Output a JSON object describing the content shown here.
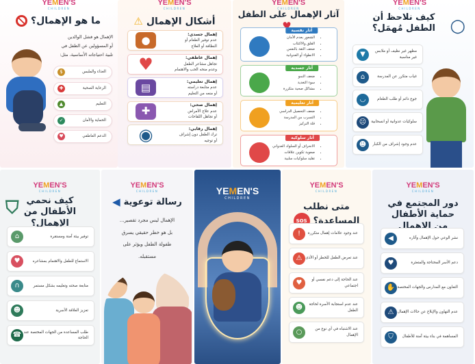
{
  "logo": {
    "pre": "YE",
    "mid": "M",
    "post": "EN'S",
    "sub": "CHILDREN"
  },
  "panels": [
    {
      "key": "what",
      "title": "ما هو الإهمال؟",
      "title_icon": "prohibited-icon",
      "intro": [
        "الإهمال هو فشل الوالدين",
        "أو المسؤولين عن الطفل في",
        "تلبية احتياجاته الأساسية، مثل:"
      ],
      "items": [
        {
          "text": "الغذاء والملبس",
          "icon": "money-bag-icon",
          "color": "#c8902a",
          "glyph": "$"
        },
        {
          "text": "الرعاية الصحية",
          "icon": "medical-cross-icon",
          "color": "#d83a3a",
          "glyph": "✚"
        },
        {
          "text": "التعليم",
          "icon": "graduation-cap-icon",
          "color": "#4f8a2e",
          "glyph": "▲"
        },
        {
          "text": "الحماية والأمان",
          "icon": "shield-icon",
          "color": "#2e8a5e",
          "glyph": "✓"
        },
        {
          "text": "الدعم العاطفي",
          "icon": "heart-hands-icon",
          "color": "#d84a5a",
          "glyph": "♥"
        }
      ]
    },
    {
      "key": "forms",
      "title": "أشكال الإهمال",
      "title_icon": "warning-icon",
      "items": [
        {
          "head": "إهمال جسدي:",
          "lines": [
            "عدم توفير الطعام أو",
            "النظافة أو العلاج"
          ],
          "icon": "food-plate-icon",
          "color": "#c86a2a",
          "glyph": "●",
          "border": "#f3d3b8"
        },
        {
          "head": "إهمال عاطفي:",
          "lines": [
            "تجاهل مشاعر الطفل",
            "وعدم منحه الحب والاهتمام"
          ],
          "icon": "heart-icon",
          "color": "#e04848",
          "glyph": "♥",
          "border": "#f4c8c8"
        },
        {
          "head": "إهمال تعليمي:",
          "lines": [
            "عدم متابعة دراسته",
            "أو منعه من التعليم"
          ],
          "icon": "book-icon",
          "color": "#6a48a0",
          "glyph": "▤",
          "border": "#d8d0ee"
        },
        {
          "head": "إهمال صحي:",
          "lines": [
            "عدم علاج الأمراض",
            "أو تجاهل اللقاحات"
          ],
          "icon": "first-aid-kit-icon",
          "color": "#8a58b0",
          "glyph": "✚",
          "border": "#f3d8c0"
        },
        {
          "head": "إهمال رقابي:",
          "lines": [
            "ترك الطفل دون إشراف",
            "أو توجيه"
          ],
          "icon": "eye-icon",
          "color": "#1e5a8a",
          "glyph": "◉",
          "border": "#e8dcc8"
        }
      ]
    },
    {
      "key": "effects",
      "title": "آثار الإهمال على الطفل",
      "title_icon": "broken-heart-icon",
      "sections": [
        {
          "tag": "آثار نفسية",
          "color": "#2f7ac0",
          "icon": "brain-head-icon",
          "points": [
            "الشعور بعدم الأمان",
            "القلق والاكتئاب",
            "ضعف الثقة بالنفس",
            "الانطواء أو العدوانية"
          ]
        },
        {
          "tag": "آثار جسدية",
          "color": "#4aa84a",
          "icon": "person-icon",
          "points": [
            "ضعف النمو",
            "سوء التغذية",
            "مشاكل صحية متكررة"
          ]
        },
        {
          "tag": "آثار تعليمية",
          "color": "#f0a020",
          "icon": "reading-icon",
          "points": [
            "ضعف التحصيل الدراسي",
            "التسرب من المدرسة",
            "قلة التركيز"
          ]
        },
        {
          "tag": "آثار سلوكية",
          "color": "#e04848",
          "icon": "two-people-icon",
          "points": [
            "الانحراف أو السلوك العدواني",
            "صعوبة تكوين علاقات",
            "تقليد سلوكيات سلبية"
          ]
        }
      ]
    },
    {
      "key": "signs",
      "title": "كيف نلاحظ أن الطفل مُهمَل؟",
      "title_icon": "magnifier-icon",
      "items": [
        {
          "text": "مظهر غير نظيف أو ملابس غير مناسبة",
          "icon": "shirt-icon",
          "color": "#1e7aa8",
          "glyph": "▼"
        },
        {
          "text": "غياب متكرر عن المدرسة",
          "icon": "school-icon",
          "color": "#1e5a8a",
          "glyph": "⌂"
        },
        {
          "text": "جوع دائم أو طلب الطعام",
          "icon": "empty-bowl-icon",
          "color": "#1e6a9a",
          "glyph": "◡"
        },
        {
          "text": "سلوكيات عدوانية أو انسحابية",
          "icon": "angry-face-icon",
          "color": "#1e4a7a",
          "glyph": "☹"
        },
        {
          "text": "عدم وجود إشراف من الكبار",
          "icon": "adult-child-icon",
          "color": "#1e5a8a",
          "glyph": "☻"
        }
      ]
    },
    {
      "key": "protect",
      "title": "كيف نحمي الأطفال من الإهمال؟",
      "title_icon": "shield-icon",
      "items": [
        {
          "text": "توفير بيئة آمنة ومستقرة",
          "icon": "house-icon",
          "color": "#5a9a6a",
          "glyph": "⌂"
        },
        {
          "text": "الاستماع للطفل والاهتمام بمشاعره",
          "icon": "heart-icon",
          "color": "#d85060",
          "glyph": "♥"
        },
        {
          "text": "متابعة صحته وتعليمه بشكل مستمر",
          "icon": "stethoscope-icon",
          "color": "#3a8a8a",
          "glyph": "∩"
        },
        {
          "text": "تعزيز العلاقة الأسرية",
          "icon": "family-icon",
          "color": "#2e7a5a",
          "glyph": "☻"
        },
        {
          "text": "طلب المساعدة من الجهات المختصة عند الحاجة",
          "icon": "phone-icon",
          "color": "#1e6a4a",
          "glyph": "☎"
        }
      ]
    },
    {
      "key": "message",
      "title": "رسالة توعوية",
      "title_icon": "megaphone-icon",
      "intro": [
        "الإهمال ليس مجرد تقصير...",
        "بل هو خطر حقيقي يسرق",
        "طفولة الطفل ويؤثر على",
        "مستقبله."
      ]
    },
    {
      "key": "cover"
    },
    {
      "key": "help",
      "title": "متى نطلب المساعدة؟",
      "title_icon": "sos-icon",
      "sos": "SOS",
      "items": [
        {
          "text": "عند وجود علامات إهمال متكررة",
          "icon": "exclamation-icon",
          "color": "#e05040",
          "glyph": "!"
        },
        {
          "text": "عند تعرض الطفل للخطر أو الأذى",
          "icon": "warning-icon",
          "color": "#e05040",
          "glyph": "⚠"
        },
        {
          "text": "عند الحاجة إلى دعم نفسي أو اجتماعي",
          "icon": "heart-hands-icon",
          "color": "#e06040",
          "glyph": "♥"
        },
        {
          "text": "عند عدم استجابة الأسرة لحاجة الطفل",
          "icon": "two-people-icon",
          "color": "#4a9a5a",
          "glyph": "☻"
        },
        {
          "text": "عند الاشتباه في أي نوع من الإهمال",
          "icon": "magnifier-icon",
          "color": "#5a9a5a",
          "glyph": "○"
        }
      ]
    },
    {
      "key": "community",
      "title": "دور المجتمع في حماية الأطفال من الإهمال",
      "items": [
        {
          "text": "نشر الوعي حول الإهمال وآثاره",
          "icon": "megaphone-icon",
          "color": "#1e5a8a",
          "glyph": "◀"
        },
        {
          "text": "دعم الأسر المحتاجة والمتعثرة",
          "icon": "heart-hands-icon",
          "color": "#1e4a7a",
          "glyph": "♥"
        },
        {
          "text": "التعاون مع المدارس والجهات المختصة",
          "icon": "handshake-icon",
          "color": "#1e5a8a",
          "glyph": "✋"
        },
        {
          "text": "عدم التهاون والإبلاغ عن حالات الإهمال",
          "icon": "warning-icon",
          "color": "#1e4a7a",
          "glyph": "⚠"
        },
        {
          "text": "المساهمة في بناء بيئة آمنة للأطفال",
          "icon": "shield-icon",
          "color": "#1e5a8a",
          "glyph": "⛉"
        }
      ]
    }
  ]
}
